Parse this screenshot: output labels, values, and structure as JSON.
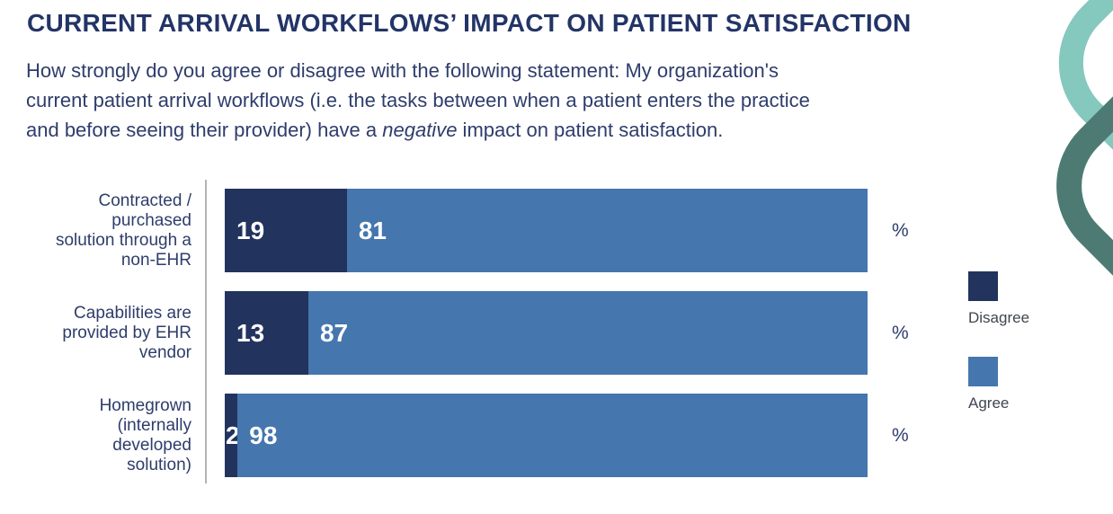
{
  "header": {
    "title": "CURRENT ARRIVAL WORKFLOWS’ IMPACT ON PATIENT SATISFACTION",
    "subtitle_line1": "How strongly do you agree or disagree with the following statement: My organization's",
    "subtitle_line2": "current patient arrival workflows (i.e. the tasks between when a patient enters the practice",
    "subtitle_line3_pre": "and before seeing their provider) have a ",
    "subtitle_line3_italic": "negative",
    "subtitle_line3_post": " impact on patient satisfaction."
  },
  "chart_data": {
    "type": "bar",
    "orientation": "horizontal",
    "stacked": true,
    "unit_label": "%",
    "xlim": [
      0,
      100
    ],
    "grid": false,
    "legend_position": "right",
    "categories": [
      "Contracted /\npurchased\nsolution through a\nnon-EHR",
      "Capabilities are\nprovided by EHR\nvendor",
      "Homegrown\n(internally\ndeveloped\nsolution)"
    ],
    "series": [
      {
        "name": "Disagree",
        "color": "#22335e",
        "values": [
          19,
          13,
          2
        ]
      },
      {
        "name": "Agree",
        "color": "#4576ae",
        "values": [
          81,
          87,
          98
        ]
      }
    ]
  },
  "colors": {
    "title_text": "#233467",
    "body_text": "#2e3d6b",
    "bar_disagree": "#22335e",
    "bar_agree": "#4576ae",
    "value_text": "#ffffff",
    "axis_line": "#b4b4b8",
    "legend_text": "#40454f",
    "deco_light": "#85c8bd",
    "deco_dark": "#4d7b73"
  }
}
